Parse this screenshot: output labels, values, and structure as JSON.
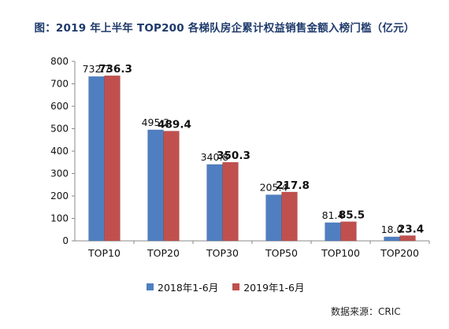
{
  "chart_data": {
    "type": "bar",
    "title": "图：2019 年上半年 TOP200 各梯队房企累计权益销售金额入榜门槛（亿元）",
    "categories": [
      "TOP10",
      "TOP20",
      "TOP30",
      "TOP50",
      "TOP100",
      "TOP200"
    ],
    "series": [
      {
        "name": "2018年1-6月",
        "color": "#4f7fc0",
        "values": [
          732.7,
          495.2,
          340.8,
          205.4,
          81.4,
          18.0
        ],
        "labels": [
          "732.7",
          "495.2",
          "340.8",
          "205.4",
          "81.4",
          "18.0"
        ]
      },
      {
        "name": "2019年1-6月",
        "color": "#c0504d",
        "values": [
          736.3,
          489.4,
          350.3,
          217.8,
          85.5,
          23.4
        ],
        "labels": [
          "736.3",
          "489.4",
          "350.3",
          "217.8",
          "85.5",
          "23.4"
        ]
      }
    ],
    "ylim": [
      0,
      800
    ],
    "yticks": [
      "0",
      "100",
      "200",
      "300",
      "400",
      "500",
      "600",
      "700",
      "800"
    ],
    "xlabel": "",
    "ylabel": "",
    "grid": false,
    "legend": "bottom"
  },
  "source": "数据来源：CRIC"
}
